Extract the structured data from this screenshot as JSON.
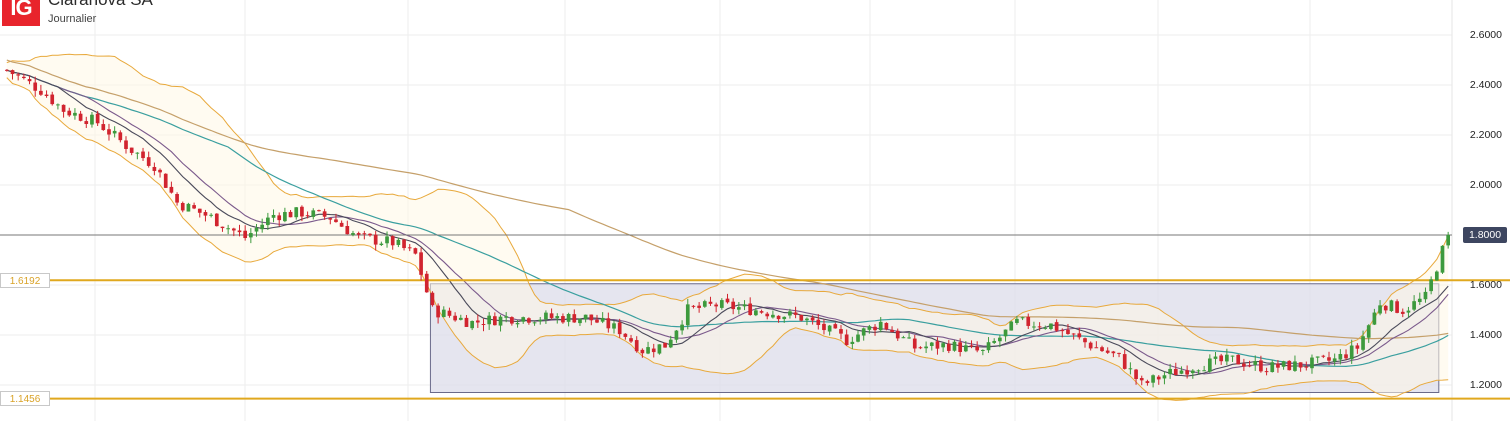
{
  "header": {
    "logo_text": "IG",
    "instrument": "Claranova SA",
    "timeframe": "Journalier"
  },
  "colors": {
    "up": "#3d9a3d",
    "down": "#d1242f",
    "level_line": "#e0a81e",
    "bollinger": "#e8a93c",
    "ma_fast": "#4a4a5a",
    "ma_mid": "#7b5a8c",
    "ma_teal": "#3a9f9f",
    "ma_long": "#c5a06a",
    "range_box": "#dcdcea",
    "price_tag": "#3d4660"
  },
  "chart_data": {
    "type": "candlestick",
    "title": "Claranova SA",
    "subtitle": "Journalier",
    "ylim": [
      1.12,
      2.7
    ],
    "yticks": [
      "2.6000",
      "2.4000",
      "2.2000",
      "2.0000",
      "1.8000",
      "1.6000",
      "1.4000",
      "1.2000"
    ],
    "last_price": "1.8000",
    "horizontal_levels": [
      {
        "label": "1.6192",
        "value": 1.6192
      },
      {
        "label": "1.1456",
        "value": 1.1456
      }
    ],
    "range_box": {
      "start_index": 75,
      "end_index": 252,
      "top": 1.605,
      "bottom": 1.17
    },
    "candles": []
  }
}
